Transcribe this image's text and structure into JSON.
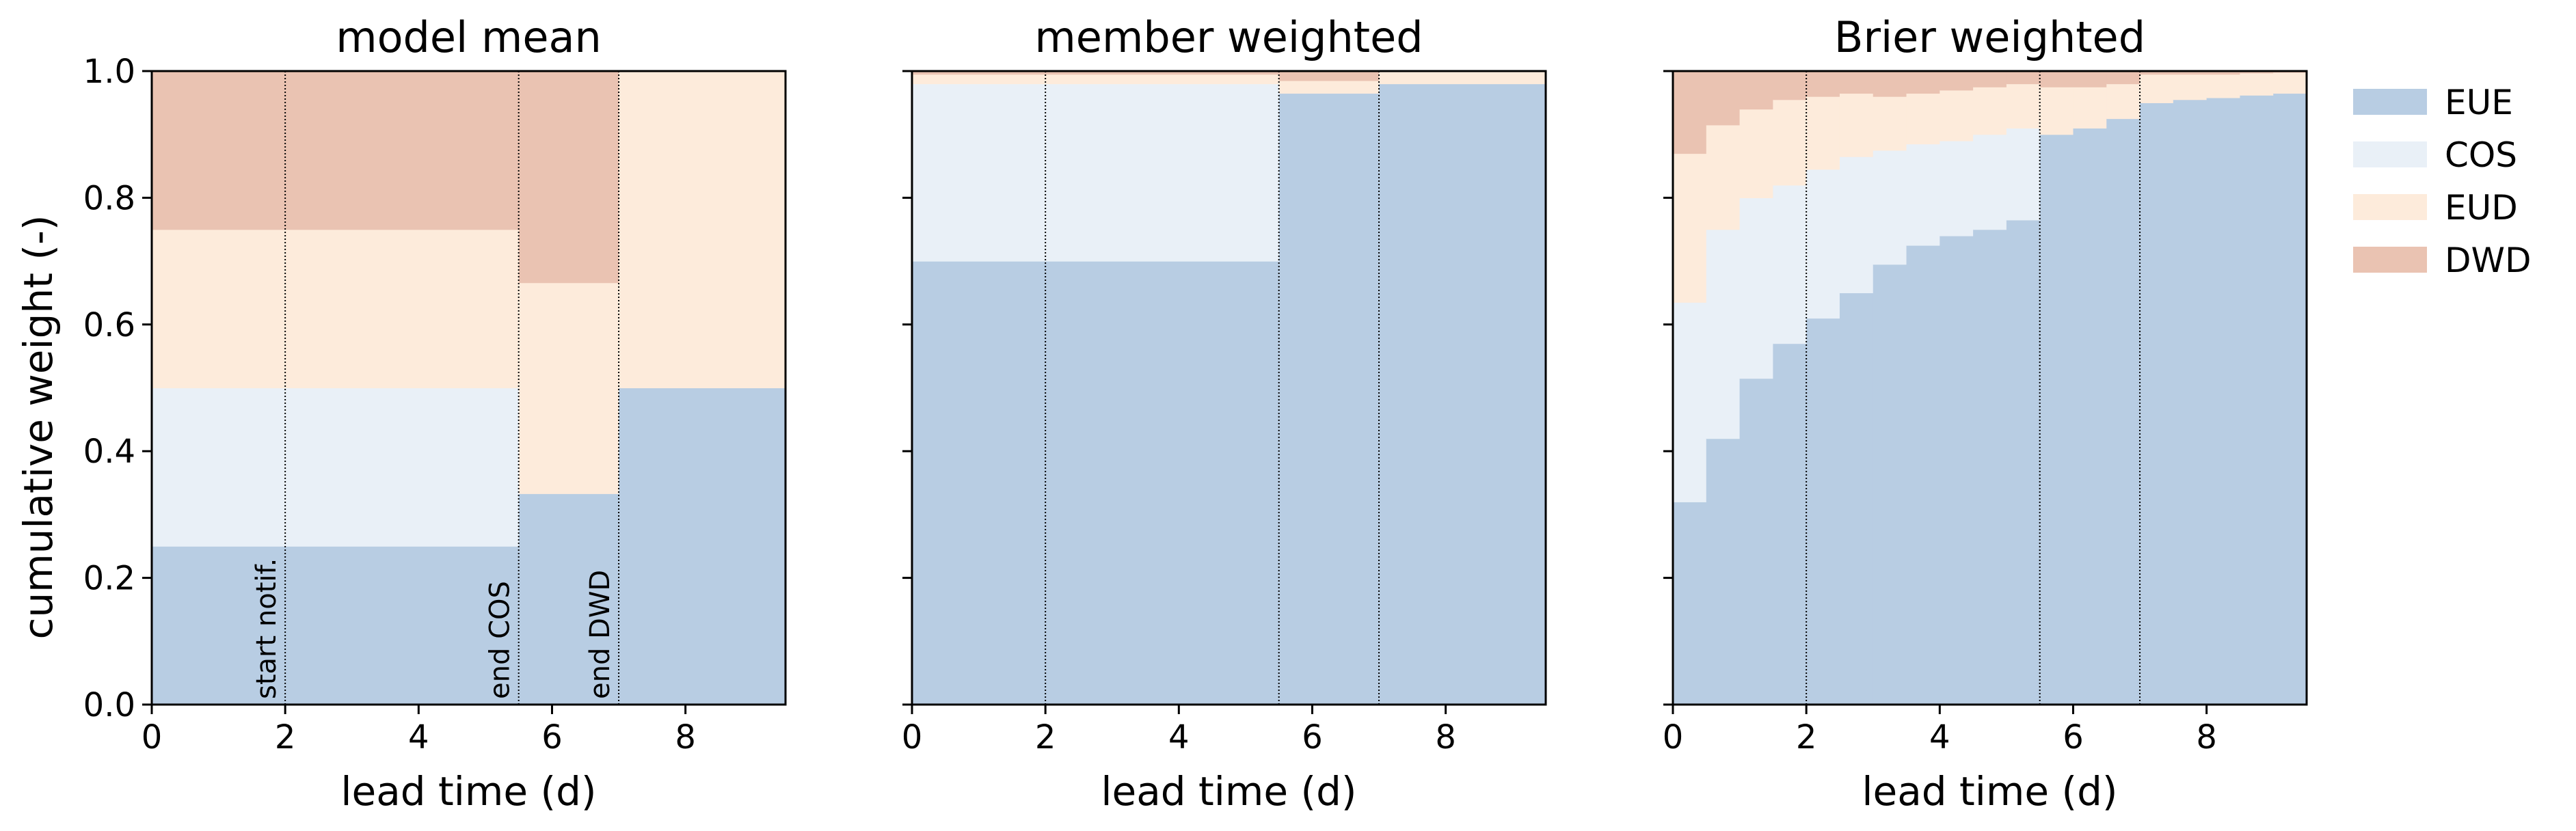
{
  "colors": {
    "EUE": "#b8cde3",
    "COS": "#e9f0f7",
    "EUD": "#fdebdb",
    "DWD": "#eac3b2"
  },
  "legend": [
    "EUE",
    "COS",
    "EUD",
    "DWD"
  ],
  "ylabel": "cumulative weight (-)",
  "xlabel": "lead time (d)",
  "xticks": [
    "0",
    "2",
    "4",
    "6",
    "8"
  ],
  "yticks": [
    "0.0",
    "0.2",
    "0.4",
    "0.6",
    "0.8",
    "1.0"
  ],
  "chart_data": [
    {
      "type": "area",
      "title": "model mean",
      "xlabel": "lead time (d)",
      "ylabel": "cumulative weight (-)",
      "xlim": [
        0,
        9.5
      ],
      "ylim": [
        0,
        1
      ],
      "stacked": true,
      "step": true,
      "x_edges": [
        0,
        5.5,
        7,
        9.5
      ],
      "series": [
        {
          "name": "EUE",
          "values": [
            0.25,
            0.333,
            0.5
          ]
        },
        {
          "name": "COS",
          "values": [
            0.25,
            0,
            0
          ]
        },
        {
          "name": "EUD",
          "values": [
            0.25,
            0.333,
            0.5
          ]
        },
        {
          "name": "DWD",
          "values": [
            0.25,
            0.334,
            0
          ]
        }
      ],
      "vlines": [
        {
          "x": 2,
          "label": "start notif."
        },
        {
          "x": 5.5,
          "label": "end COS"
        },
        {
          "x": 7,
          "label": "end DWD"
        }
      ]
    },
    {
      "type": "area",
      "title": "member weighted",
      "xlabel": "lead time (d)",
      "xlim": [
        0,
        9.5
      ],
      "ylim": [
        0,
        1
      ],
      "stacked": true,
      "step": true,
      "x_edges": [
        0,
        5.5,
        7,
        9.5
      ],
      "series": [
        {
          "name": "EUE",
          "values": [
            0.7,
            0.965,
            0.98
          ]
        },
        {
          "name": "COS",
          "values": [
            0.28,
            0,
            0
          ]
        },
        {
          "name": "EUD",
          "values": [
            0.015,
            0.02,
            0.02
          ]
        },
        {
          "name": "DWD",
          "values": [
            0.005,
            0.015,
            0
          ]
        }
      ],
      "vlines": [
        {
          "x": 2
        },
        {
          "x": 5.5
        },
        {
          "x": 7
        }
      ]
    },
    {
      "type": "area",
      "title": "Brier weighted",
      "xlabel": "lead time (d)",
      "xlim": [
        0,
        9.5
      ],
      "ylim": [
        0,
        1
      ],
      "stacked": true,
      "step": true,
      "x_edges": [
        0,
        0.5,
        1,
        1.5,
        2,
        2.5,
        3,
        3.5,
        4,
        4.5,
        5,
        5.5,
        6,
        6.5,
        7,
        7.5,
        8,
        8.5,
        9,
        9.5
      ],
      "series": [
        {
          "name": "EUE",
          "values": [
            0.32,
            0.42,
            0.515,
            0.57,
            0.61,
            0.65,
            0.695,
            0.725,
            0.74,
            0.75,
            0.765,
            0.9,
            0.91,
            0.925,
            0.95,
            0.955,
            0.958,
            0.962,
            0.965
          ]
        },
        {
          "name": "COS",
          "values": [
            0.315,
            0.33,
            0.285,
            0.25,
            0.235,
            0.215,
            0.18,
            0.16,
            0.15,
            0.15,
            0.145,
            0,
            0,
            0,
            0,
            0,
            0,
            0,
            0
          ]
        },
        {
          "name": "EUD",
          "values": [
            0.235,
            0.165,
            0.14,
            0.135,
            0.115,
            0.1,
            0.085,
            0.08,
            0.08,
            0.075,
            0.07,
            0.075,
            0.065,
            0.055,
            0.045,
            0.04,
            0.037,
            0.035,
            0.033
          ]
        },
        {
          "name": "DWD",
          "values": [
            0.13,
            0.085,
            0.06,
            0.045,
            0.04,
            0.035,
            0.04,
            0.035,
            0.03,
            0.025,
            0.02,
            0.025,
            0.025,
            0.02,
            0.005,
            0.005,
            0.005,
            0.003,
            0.002
          ]
        }
      ],
      "vlines": [
        {
          "x": 2
        },
        {
          "x": 5.5
        },
        {
          "x": 7
        }
      ]
    }
  ]
}
